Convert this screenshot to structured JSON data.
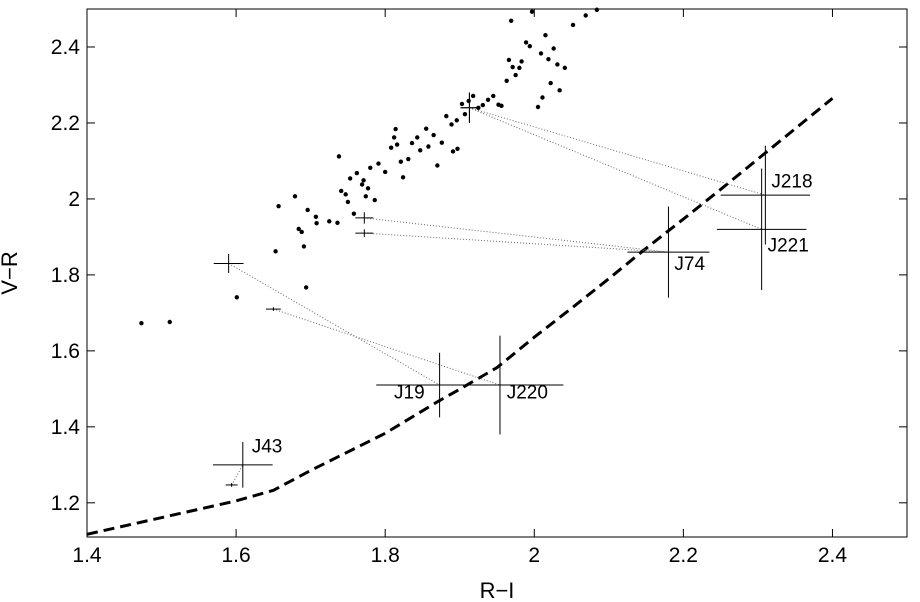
{
  "chart_data": {
    "type": "scatter",
    "title": "",
    "xlabel": "R−I",
    "ylabel": "V−R",
    "xlim": [
      1.4,
      2.5
    ],
    "ylim": [
      1.11,
      2.5
    ],
    "x_ticks": [
      1.4,
      1.6,
      1.8,
      2.0,
      2.2,
      2.4
    ],
    "x_tick_labels": [
      "1.4",
      "1.6",
      "1.8",
      "2",
      "2.2",
      "2.4"
    ],
    "y_ticks": [
      1.2,
      1.4,
      1.6,
      1.8,
      2.0,
      2.2,
      2.4
    ],
    "y_tick_labels": [
      "1.2",
      "1.4",
      "1.6",
      "1.8",
      "2",
      "2.2",
      "2.4"
    ],
    "grid": false,
    "reference_dots": [
      [
        1.473,
        1.673
      ],
      [
        1.511,
        1.676
      ],
      [
        1.601,
        1.741
      ],
      [
        1.653,
        1.862
      ],
      [
        1.657,
        1.981
      ],
      [
        1.679,
        2.007
      ],
      [
        1.684,
        1.921
      ],
      [
        1.688,
        1.913
      ],
      [
        1.691,
        1.875
      ],
      [
        1.694,
        1.767
      ],
      [
        1.696,
        1.971
      ],
      [
        1.707,
        1.953
      ],
      [
        1.708,
        1.936
      ],
      [
        1.725,
        1.941
      ],
      [
        1.736,
        1.937
      ],
      [
        1.738,
        2.112
      ],
      [
        1.741,
        2.021
      ],
      [
        1.747,
        2.012
      ],
      [
        1.75,
        1.992
      ],
      [
        1.753,
        2.054
      ],
      [
        1.758,
        1.961
      ],
      [
        1.762,
        2.068
      ],
      [
        1.769,
        2.038
      ],
      [
        1.771,
        2.049
      ],
      [
        1.774,
        2.007
      ],
      [
        1.777,
        2.028
      ],
      [
        1.78,
        2.082
      ],
      [
        1.786,
        1.997
      ],
      [
        1.791,
        2.093
      ],
      [
        1.8,
        2.071
      ],
      [
        1.808,
        2.135
      ],
      [
        1.812,
        2.162
      ],
      [
        1.814,
        2.184
      ],
      [
        1.816,
        2.143
      ],
      [
        1.821,
        2.098
      ],
      [
        1.824,
        2.057
      ],
      [
        1.831,
        2.105
      ],
      [
        1.836,
        2.147
      ],
      [
        1.843,
        2.162
      ],
      [
        1.847,
        2.128
      ],
      [
        1.855,
        2.185
      ],
      [
        1.858,
        2.138
      ],
      [
        1.865,
        2.168
      ],
      [
        1.87,
        2.088
      ],
      [
        1.876,
        2.148
      ],
      [
        1.882,
        2.218
      ],
      [
        1.889,
        2.196
      ],
      [
        1.891,
        2.125
      ],
      [
        1.896,
        2.207
      ],
      [
        1.897,
        2.132
      ],
      [
        1.903,
        2.25
      ],
      [
        1.907,
        2.223
      ],
      [
        1.912,
        2.258
      ],
      [
        1.918,
        2.271
      ],
      [
        1.925,
        2.24
      ],
      [
        1.931,
        2.247
      ],
      [
        1.938,
        2.261
      ],
      [
        1.945,
        2.271
      ],
      [
        1.952,
        2.248
      ],
      [
        1.956,
        2.245
      ],
      [
        1.963,
        2.311
      ],
      [
        1.966,
        2.366
      ],
      [
        1.969,
        2.469
      ],
      [
        1.971,
        2.347
      ],
      [
        1.975,
        2.326
      ],
      [
        1.98,
        2.345
      ],
      [
        1.983,
        2.362
      ],
      [
        1.989,
        2.412
      ],
      [
        1.994,
        2.402
      ],
      [
        1.997,
        2.493
      ],
      [
        2.005,
        2.242
      ],
      [
        2.009,
        2.383
      ],
      [
        2.011,
        2.267
      ],
      [
        2.015,
        2.431
      ],
      [
        2.019,
        2.368
      ],
      [
        2.022,
        2.305
      ],
      [
        2.026,
        2.396
      ],
      [
        2.031,
        2.354
      ],
      [
        2.034,
        2.286
      ],
      [
        2.041,
        2.345
      ],
      [
        2.052,
        2.458
      ],
      [
        2.069,
        2.483
      ],
      [
        2.084,
        2.498
      ]
    ],
    "dashed_line": [
      [
        1.4,
        1.117
      ],
      [
        1.6,
        1.205
      ],
      [
        1.65,
        1.233
      ],
      [
        1.7,
        1.285
      ],
      [
        1.8,
        1.383
      ],
      [
        1.87,
        1.466
      ],
      [
        1.9,
        1.499
      ],
      [
        1.95,
        1.556
      ],
      [
        2.0,
        1.636
      ],
      [
        2.05,
        1.712
      ],
      [
        2.1,
        1.79
      ],
      [
        2.15,
        1.87
      ],
      [
        2.2,
        1.947
      ],
      [
        2.25,
        2.025
      ],
      [
        2.3,
        2.105
      ],
      [
        2.35,
        2.185
      ],
      [
        2.4,
        2.265
      ]
    ],
    "objects": [
      {
        "name": "J19",
        "x": 1.873,
        "y": 1.51,
        "xerr": 0.085,
        "yerr": 0.085,
        "label_x": 1.853,
        "label_y": 1.475
      },
      {
        "name": "J220",
        "x": 1.954,
        "y": 1.51,
        "xerr": 0.085,
        "yerr": 0.13,
        "label_x": 1.963,
        "label_y": 1.475
      },
      {
        "name": "J43",
        "x": 1.609,
        "y": 1.3,
        "xerr": 0.04,
        "yerr": 0.06,
        "label_x": 1.621,
        "label_y": 1.333
      },
      {
        "name": "J74",
        "x": 2.18,
        "y": 1.86,
        "xerr": 0.055,
        "yerr": 0.12,
        "label_x": 2.188,
        "label_y": 1.813
      },
      {
        "name": "J218",
        "x": 2.31,
        "y": 2.01,
        "xerr": 0.06,
        "yerr": 0.13,
        "label_x": 2.318,
        "label_y": 2.03
      },
      {
        "name": "J221",
        "x": 2.305,
        "y": 1.92,
        "xerr": 0.06,
        "yerr": 0.16,
        "label_x": 2.313,
        "label_y": 1.862
      }
    ],
    "observed_points": [
      {
        "x": 1.59,
        "y": 1.83,
        "xerr": 0.02,
        "yerr": 0.025,
        "links_to": "J19"
      },
      {
        "x": 1.65,
        "y": 1.71,
        "xerr": 0.01,
        "yerr": 0.005,
        "links_to": "J220"
      },
      {
        "x": 1.594,
        "y": 1.247,
        "xerr": 0.008,
        "yerr": 0.005,
        "links_to": "J43"
      },
      {
        "x": 1.772,
        "y": 1.95,
        "xerr": 0.012,
        "yerr": 0.015,
        "links_to": "J74"
      },
      {
        "x": 1.772,
        "y": 1.91,
        "xerr": 0.012,
        "yerr": 0.01,
        "links_to": "J74"
      },
      {
        "x": 1.913,
        "y": 2.24,
        "xerr": 0.012,
        "yerr": 0.04,
        "links_to": "J218"
      },
      {
        "x": 1.913,
        "y": 2.24,
        "xerr": 0.012,
        "yerr": 0.04,
        "links_to": "J221"
      }
    ]
  }
}
